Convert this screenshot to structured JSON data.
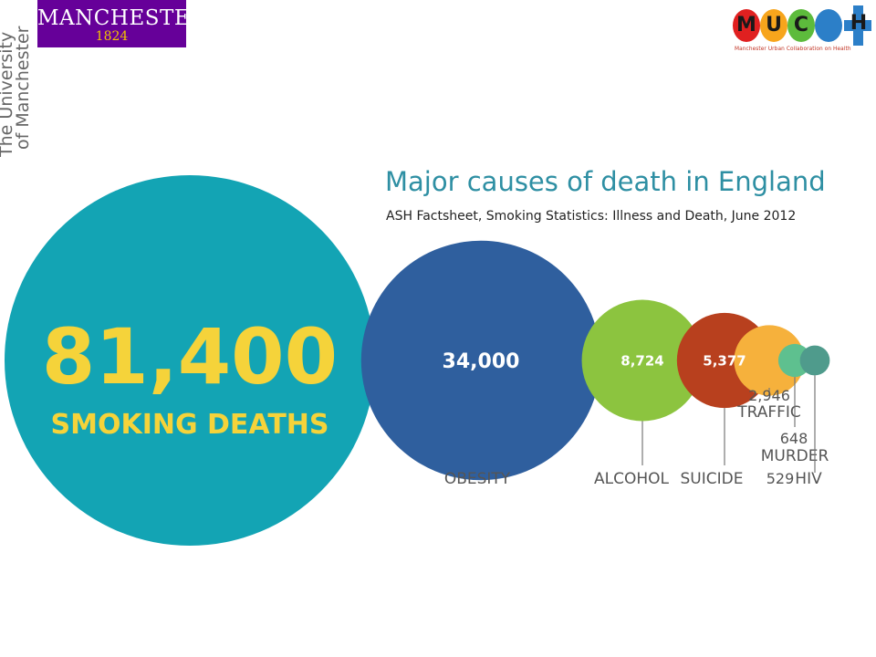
{
  "header": {
    "uom_logo": {
      "wordmark": "MANCHESTER",
      "year": "1824",
      "side_line1": "The University",
      "side_line2": "of Manchester"
    },
    "much_logo": {
      "letters": [
        "M",
        "U",
        "C",
        "H"
      ],
      "tagline": "Manchester Urban Collaboration on Health"
    }
  },
  "colors": {
    "uom_purple": "#660099",
    "uom_gold": "#f2c300",
    "much_red": "#e02020",
    "much_orange": "#f7a51c",
    "much_green": "#5dbb3c",
    "much_blue": "#2c7fc8",
    "title_teal": "#2e8fa3"
  },
  "chart_data": {
    "type": "bubble",
    "title": "Major causes of death in England",
    "subtitle": "ASH Factsheet, Smoking Statistics: Illness and Death, June 2012",
    "series": [
      {
        "label": "SMOKING DEATHS",
        "value": 81400,
        "display": "81,400",
        "color": "#13a4b4",
        "text_color": "#f5d33a"
      },
      {
        "label": "OBESITY",
        "value": 34000,
        "display": "34,000",
        "color": "#2f5f9e",
        "text_color": "#ffffff"
      },
      {
        "label": "ALCOHOL",
        "value": 8724,
        "display": "8,724",
        "color": "#8cc43f",
        "text_color": "#ffffff"
      },
      {
        "label": "SUICIDE",
        "value": 5377,
        "display": "5,377",
        "color": "#b8401e",
        "text_color": "#ffffff"
      },
      {
        "label": "TRAFFIC",
        "value": 2946,
        "display": "2,946",
        "color": "#f6b13c",
        "text_color": "#555555"
      },
      {
        "label": "MURDER",
        "value": 648,
        "display": "648",
        "color": "#5ec08f",
        "text_color": "#555555"
      },
      {
        "label": "HIV",
        "value": 529,
        "display": "529",
        "color": "#4f9b8c",
        "text_color": "#555555"
      }
    ]
  }
}
